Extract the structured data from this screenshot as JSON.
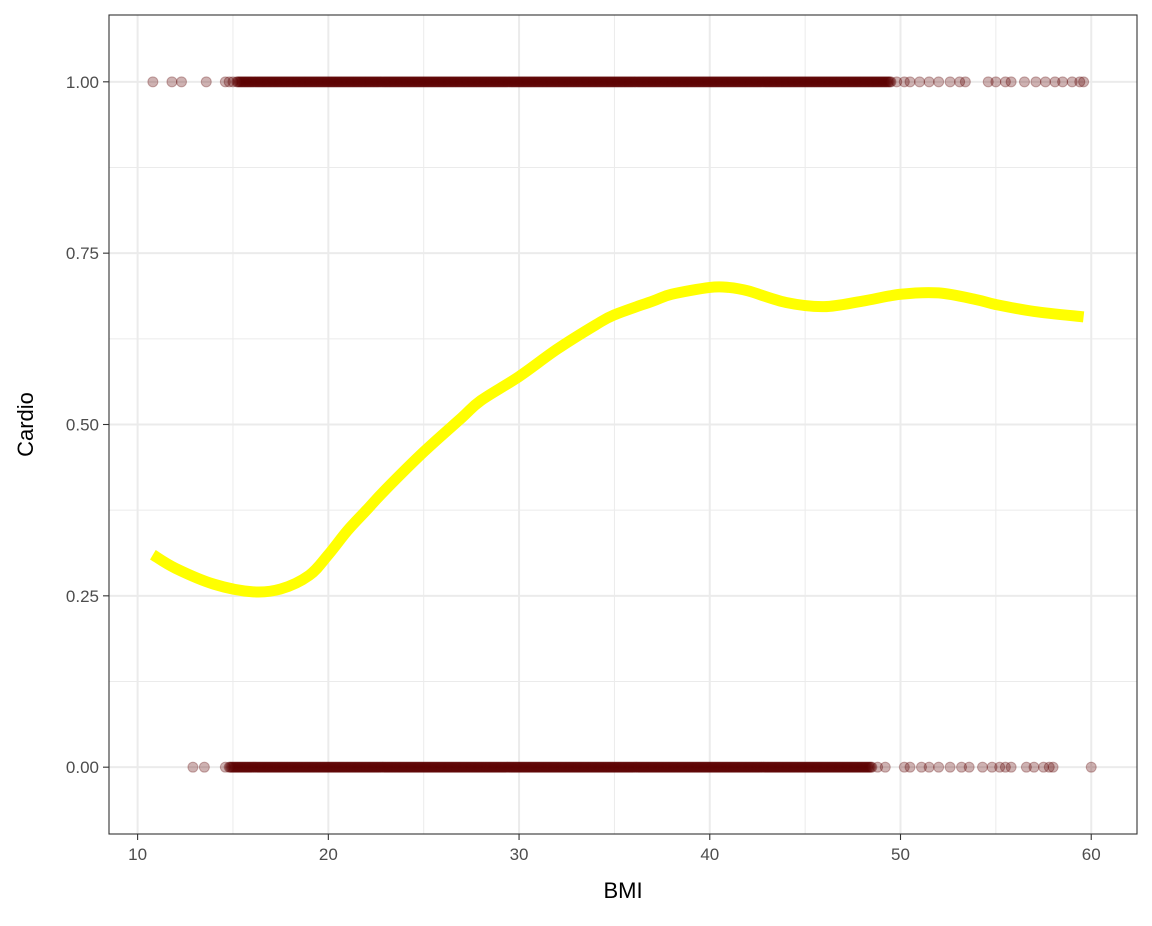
{
  "chart_data": {
    "type": "scatter",
    "title": "",
    "xlabel": "BMI",
    "ylabel": "Cardio",
    "xlim": [
      8.5,
      62.4
    ],
    "ylim": [
      -0.0975,
      1.0975
    ],
    "x_ticks": [
      10,
      20,
      30,
      40,
      50,
      60
    ],
    "x_tick_labels": [
      "10",
      "20",
      "30",
      "40",
      "50",
      "60"
    ],
    "y_ticks": [
      0,
      0.25,
      0.5,
      0.75,
      1
    ],
    "y_tick_labels": [
      "0.00",
      "0.25",
      "0.50",
      "0.75",
      "1.00"
    ],
    "grid": true,
    "legend": "none",
    "colors": {
      "points": "#5c0000",
      "smooth_line": "#ffff00",
      "grid": "#ebebeb",
      "panel_border": "#333333"
    },
    "series": [
      {
        "type": "scatter",
        "y_value": 1,
        "x_dense_range": [
          15.2,
          49.5
        ],
        "x_sparse": [
          10.8,
          11.8,
          12.3,
          13.6,
          14.6,
          14.8,
          15.0,
          49.8,
          50.2,
          50.5,
          51.0,
          51.5,
          52.0,
          52.6,
          53.1,
          53.4,
          54.6,
          55.0,
          55.5,
          55.8,
          56.5,
          57.1,
          57.6,
          58.1,
          58.5,
          59.0,
          59.4,
          59.6
        ]
      },
      {
        "type": "scatter",
        "y_value": 0,
        "x_dense_range": [
          14.8,
          48.5
        ],
        "x_sparse": [
          12.9,
          13.5,
          14.6,
          48.8,
          49.2,
          50.2,
          50.5,
          51.1,
          51.5,
          52.0,
          52.6,
          53.2,
          53.6,
          54.3,
          54.8,
          55.2,
          55.5,
          55.8,
          56.6,
          57.0,
          57.5,
          57.8,
          58.0,
          60.0
        ]
      },
      {
        "type": "line",
        "smooth": true,
        "x": [
          10.8,
          12,
          14,
          16,
          17.5,
          19,
          20,
          21,
          22,
          23,
          25,
          27,
          28,
          30,
          32,
          34,
          35,
          37,
          38,
          40,
          41,
          42,
          44,
          46,
          48,
          50,
          52,
          54,
          55,
          57,
          59.6
        ],
        "y": [
          0.31,
          0.29,
          0.267,
          0.256,
          0.26,
          0.28,
          0.31,
          0.345,
          0.375,
          0.405,
          0.46,
          0.51,
          0.535,
          0.57,
          0.61,
          0.645,
          0.66,
          0.68,
          0.69,
          0.7,
          0.7,
          0.695,
          0.678,
          0.672,
          0.68,
          0.69,
          0.692,
          0.682,
          0.675,
          0.665,
          0.657
        ]
      }
    ]
  }
}
